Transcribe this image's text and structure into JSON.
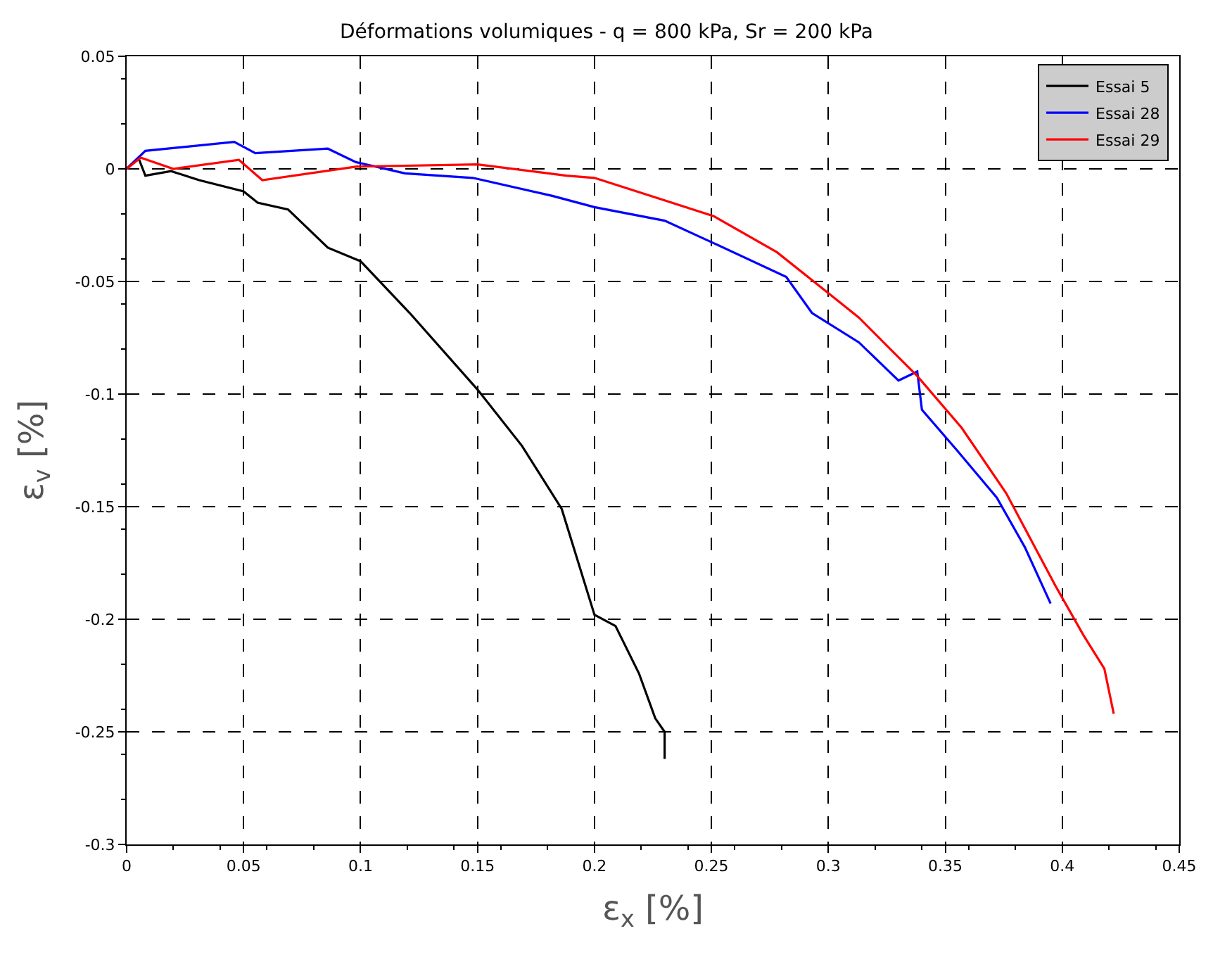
{
  "chart_data": {
    "type": "line",
    "title": "Déformations volumiques - q = 800 kPa, Sr = 200 kPa",
    "xlabel": "ε$_{x}$ [%]",
    "ylabel": "ε$_{v}$ [%]",
    "xlim": [
      0,
      0.45
    ],
    "xticks": [
      0,
      0.05,
      0.1,
      0.15,
      0.2,
      0.25,
      0.3,
      0.35,
      0.4,
      0.45
    ],
    "ylim": [
      -0.3,
      0.05
    ],
    "yticks": [
      -0.3,
      -0.25,
      -0.2,
      -0.15,
      -0.1,
      -0.05,
      0,
      0.05
    ],
    "grid": true,
    "legend": "top right",
    "marker": "none",
    "line_style": "solid",
    "series": [
      {
        "name": "Essai 5",
        "color": "#000000",
        "x": [
          0,
          0.005,
          0.008,
          0.019,
          0.031,
          0.05,
          0.056,
          0.069,
          0.086,
          0.1,
          0.121,
          0.15,
          0.169,
          0.186,
          0.2,
          0.209,
          0.219,
          0.226,
          0.23,
          0.23
        ],
        "values": [
          0,
          0.005,
          -0.003,
          -0.001,
          -0.005,
          -0.01,
          -0.015,
          -0.018,
          -0.035,
          -0.041,
          -0.064,
          -0.098,
          -0.123,
          -0.151,
          -0.198,
          -0.203,
          -0.224,
          -0.244,
          -0.25,
          -0.262
        ]
      },
      {
        "name": "Essai 28",
        "color": "#0000ff",
        "x": [
          0,
          0.008,
          0.046,
          0.055,
          0.086,
          0.098,
          0.119,
          0.148,
          0.182,
          0.2,
          0.23,
          0.251,
          0.282,
          0.293,
          0.313,
          0.33,
          0.338,
          0.34,
          0.355,
          0.372,
          0.384,
          0.395
        ],
        "values": [
          0,
          0.008,
          0.012,
          0.007,
          0.009,
          0.003,
          -0.002,
          -0.004,
          -0.012,
          -0.017,
          -0.023,
          -0.033,
          -0.048,
          -0.064,
          -0.077,
          -0.094,
          -0.09,
          -0.107,
          -0.125,
          -0.146,
          -0.168,
          -0.193
        ]
      },
      {
        "name": "Essai 29",
        "color": "#ff0000",
        "x": [
          0,
          0.006,
          0.02,
          0.048,
          0.058,
          0.098,
          0.15,
          0.188,
          0.2,
          0.23,
          0.251,
          0.278,
          0.301,
          0.313,
          0.338,
          0.357,
          0.376,
          0.397,
          0.409,
          0.418,
          0.422
        ],
        "values": [
          0,
          0.005,
          0,
          0.004,
          -0.005,
          0.001,
          0.002,
          -0.003,
          -0.004,
          -0.014,
          -0.021,
          -0.037,
          -0.056,
          -0.066,
          -0.092,
          -0.115,
          -0.144,
          -0.185,
          -0.207,
          -0.222,
          -0.242
        ]
      }
    ]
  }
}
